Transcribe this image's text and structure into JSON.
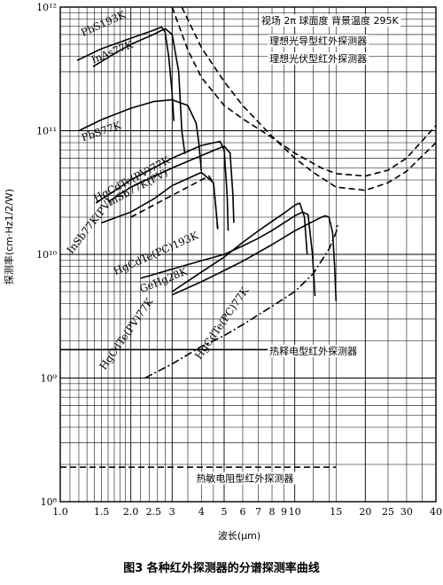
{
  "caption": "图3   各种红外探测器的分谱探测率曲线",
  "chart_data": {
    "type": "line",
    "title": "",
    "xlabel": "波长(μm)",
    "ylabel": "探测率(cm·Hz1/2/W)",
    "x_scale": "log",
    "y_scale": "log",
    "xlim": [
      1,
      40
    ],
    "ylim": [
      100000000.0,
      1000000000000.0
    ],
    "x_ticks": [
      {
        "value": 1.0,
        "label": "1.0"
      },
      {
        "value": 1.5,
        "label": "1.5"
      },
      {
        "value": 2.0,
        "label": "2.0"
      },
      {
        "value": 2.5,
        "label": "2.5"
      },
      {
        "value": 3,
        "label": "3"
      },
      {
        "value": 4,
        "label": "4"
      },
      {
        "value": 5,
        "label": "5"
      },
      {
        "value": 6,
        "label": "6"
      },
      {
        "value": 7,
        "label": "7"
      },
      {
        "value": 8,
        "label": "8"
      },
      {
        "value": 9,
        "label": "9"
      },
      {
        "value": 10,
        "label": "10"
      },
      {
        "value": 15,
        "label": "15"
      },
      {
        "value": 20,
        "label": "20"
      },
      {
        "value": 25,
        "label": "25"
      },
      {
        "value": 30,
        "label": "30"
      },
      {
        "value": 40,
        "label": "40"
      }
    ],
    "y_ticks": [
      {
        "value": 1000000000000.0,
        "label": "10¹²"
      },
      {
        "value": 100000000000.0,
        "label": "10¹¹"
      },
      {
        "value": 10000000000.0,
        "label": "10¹⁰"
      },
      {
        "value": 1000000000.0,
        "label": "10⁹"
      },
      {
        "value": 100000000.0,
        "label": "10⁸"
      }
    ],
    "grid": true,
    "annotations": [
      {
        "text": "视场 2π 球面度  背景温度 295K",
        "x": 7.2,
        "y": 730000000000.0
      },
      {
        "text": "理想光导型红外探测器",
        "x": 7.8,
        "y": 500000000000.0
      },
      {
        "text": "理想光伏型红外探测器",
        "x": 7.8,
        "y": 360000000000.0
      },
      {
        "text": "热释电型红外探测器",
        "x": 7.8,
        "y": 1550000000.0
      },
      {
        "text": "热敏电阻型红外探测器",
        "x": 3.8,
        "y": 145000000.0
      }
    ],
    "series": [
      {
        "name": "PbS193K",
        "style": "solid",
        "label_x": 1.25,
        "label_y": 580000000000.0,
        "label_rot": -24,
        "x": [
          1.18,
          1.5,
          2.0,
          2.5,
          2.7,
          2.8,
          2.9,
          3.0,
          3.05
        ],
        "y": [
          370000000000.0,
          460000000000.0,
          560000000000.0,
          650000000000.0,
          690000000000.0,
          630000000000.0,
          400000000000.0,
          200000000000.0,
          120000000000.0
        ]
      },
      {
        "name": "InAs77K",
        "style": "solid",
        "label_x": 1.38,
        "label_y": 350000000000.0,
        "label_rot": -22,
        "x": [
          1.38,
          1.7,
          2.0,
          2.5,
          2.8,
          3.0,
          3.2,
          3.3,
          3.4
        ],
        "y": [
          330000000000.0,
          420000000000.0,
          500000000000.0,
          600000000000.0,
          670000000000.0,
          600000000000.0,
          300000000000.0,
          100000000000.0,
          65000000000.0
        ]
      },
      {
        "name": "PbS77K",
        "style": "solid",
        "label_x": 1.25,
        "label_y": 82000000000.0,
        "label_rot": -19,
        "x": [
          1.2,
          1.5,
          2.0,
          2.5,
          3.0,
          3.5,
          3.8,
          3.9,
          4.0
        ],
        "y": [
          100000000000.0,
          123000000000.0,
          152000000000.0,
          172000000000.0,
          178000000000.0,
          160000000000.0,
          115000000000.0,
          80000000000.0,
          47000000000.0
        ]
      },
      {
        "name": "HgCdTe(PV)77K",
        "style": "solid",
        "label_x": 1.42,
        "label_y": 26500000000.0,
        "label_rot": -28,
        "x": [
          1.42,
          2.0,
          2.5,
          3.0,
          4.0,
          4.8,
          5.0,
          5.15,
          5.2
        ],
        "y": [
          26000000000.0,
          40000000000.0,
          50000000000.0,
          60000000000.0,
          76000000000.0,
          82000000000.0,
          70000000000.0,
          30000000000.0,
          15500000000.0
        ]
      },
      {
        "name": "InSb77K(PV)",
        "style": "solid",
        "label_x": 1.62,
        "label_y": 24500000000.0,
        "label_rot": -28,
        "x": [
          1.62,
          2.0,
          3.0,
          4.0,
          5.0,
          5.3,
          5.45,
          5.5
        ],
        "y": [
          27000000000.0,
          35000000000.0,
          50000000000.0,
          63000000000.0,
          75000000000.0,
          66000000000.0,
          30000000000.0,
          18000000000.0
        ]
      },
      {
        "name": "InSb77K(PV)",
        "style": "solid",
        "label_x": 1.12,
        "label_y": 10000000000.0,
        "label_rot": -52,
        "x": [
          1.5,
          2.0,
          2.5,
          3.0,
          4.0,
          4.5,
          4.7
        ],
        "y": [
          18000000000.0,
          22000000000.0,
          28000000000.0,
          36000000000.0,
          46000000000.0,
          38000000000.0,
          16000000000.0
        ]
      },
      {
        "name": "HgCdTe(PC)193K",
        "style": "dashed",
        "label_x": 1.72,
        "label_y": 6800000000.0,
        "label_rot": -24,
        "x": [
          2.0,
          2.5,
          3.0,
          3.5,
          4.0,
          4.3,
          4.5,
          4.6,
          4.7
        ],
        "y": [
          20000000000.0,
          25000000000.0,
          30000000000.0,
          35000000000.0,
          40000000000.0,
          43000000000.0,
          38000000000.0,
          25000000000.0,
          15000000000.0
        ]
      },
      {
        "name": "GeHg28K",
        "style": "solid",
        "label_x": 2.22,
        "label_y": 4900000000.0,
        "label_rot": -22,
        "x": [
          2.2,
          3.0,
          4.0,
          5.0,
          6.0,
          7.0,
          8.0,
          9.0,
          10.0,
          10.8,
          11.4,
          11.9,
          12.2
        ],
        "y": [
          6400000000.0,
          7600000000.0,
          8900000000.0,
          10000000000.0,
          11700000000.0,
          13500000000.0,
          15600000000.0,
          18000000000.0,
          20500000000.0,
          22000000000.0,
          21000000000.0,
          10000000000.0,
          4600000000.0
        ]
      },
      {
        "name": "HgCdTe(PV)77K",
        "style": "solid",
        "label_x": 1.55,
        "label_y": 1150000000.0,
        "label_rot": -55,
        "x": [
          3.0,
          4.0,
          5.0,
          6.0,
          7.0,
          8.0,
          9.0,
          10.0,
          10.5,
          11.0,
          11.3
        ],
        "y": [
          5000000000.0,
          7200000000.0,
          9500000000.0,
          12500000000.0,
          15500000000.0,
          18500000000.0,
          21500000000.0,
          25000000000.0,
          26000000000.0,
          20000000000.0,
          10000000000.0
        ]
      },
      {
        "name": "HgCdTe(PC)77K",
        "style": "solid",
        "label_x": 3.95,
        "label_y": 1400000000.0,
        "label_rot": -55,
        "x": [
          3.0,
          4.0,
          5.0,
          6.0,
          8.0,
          10.0,
          12.0,
          13.0,
          13.5,
          14.0,
          14.5,
          14.8,
          15.0
        ],
        "y": [
          4700000000.0,
          6000000000.0,
          7400000000.0,
          8800000000.0,
          12000000000.0,
          15500000000.0,
          18500000000.0,
          20000000000.0,
          20500000000.0,
          20000000000.0,
          15000000000.0,
          8000000000.0,
          4200000000.0
        ]
      },
      {
        "name": "理想光导型红外探测器",
        "style": "dashed",
        "x": [
          3.0,
          3.5,
          4.0,
          5.0,
          6.0,
          8.0,
          10.0,
          13.0,
          15.0,
          20.0,
          25.0,
          30.0,
          40.0
        ],
        "y": [
          1000000000000.0,
          450000000000.0,
          270000000000.0,
          160000000000.0,
          125000000000.0,
          88000000000.0,
          66000000000.0,
          50000000000.0,
          45000000000.0,
          43000000000.0,
          48000000000.0,
          60000000000.0,
          110000000000.0
        ]
      },
      {
        "name": "理想光伏型红外探测器",
        "style": "dashed",
        "x": [
          3.3,
          4.0,
          5.0,
          6.0,
          8.0,
          10.0,
          12.0,
          15.0,
          20.0,
          25.0,
          30.0,
          40.0
        ],
        "y": [
          1000000000000.0,
          470000000000.0,
          250000000000.0,
          160000000000.0,
          90000000000.0,
          60000000000.0,
          46000000000.0,
          35000000000.0,
          33000000000.0,
          38000000000.0,
          47000000000.0,
          80000000000.0
        ]
      },
      {
        "name": "热释电型红外探测器",
        "style": "dashdot",
        "x": [
          2.3,
          3.0,
          4.0,
          5.0,
          6.0,
          8.0,
          10.0,
          12.0,
          14.0,
          15.0,
          15.3
        ],
        "y": [
          1000000000.0,
          1300000000.0,
          1800000000.0,
          2200000000.0,
          2700000000.0,
          3800000000.0,
          5000000000.0,
          7000000000.0,
          11000000000.0,
          15000000000.0,
          18000000000.0
        ]
      },
      {
        "name": "热释电型红外探测器",
        "style": "solid",
        "x": [
          1.0,
          15.0
        ],
        "y": [
          1700000000.0,
          1700000000.0
        ]
      },
      {
        "name": "热敏电阻型红外探测器",
        "style": "dashed",
        "x": [
          1.0,
          15.0
        ],
        "y": [
          190000000.0,
          190000000.0
        ]
      }
    ]
  }
}
